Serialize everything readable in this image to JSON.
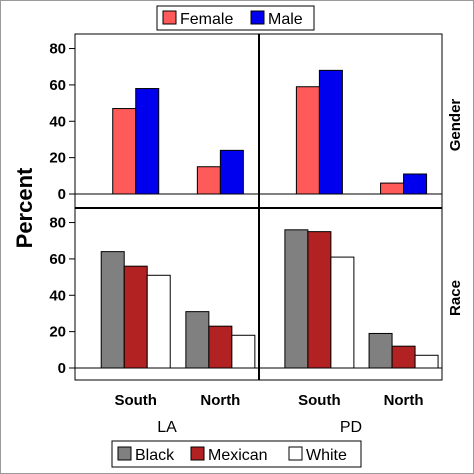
{
  "chart_data": {
    "type": "bar",
    "ylabel": "Percent",
    "ylim": [
      0,
      88
    ],
    "yticks": [
      0,
      20,
      40,
      60,
      80
    ],
    "columns": [
      "LA",
      "PD"
    ],
    "categories": [
      "South",
      "North"
    ],
    "grid": false,
    "panels": [
      {
        "row": "Gender",
        "legend": "top-center",
        "series_names": [
          "Female",
          "Male"
        ],
        "series_colors": [
          "#ff5a5a",
          "#0000ee"
        ],
        "data": {
          "LA": [
            [
              47,
              15
            ],
            [
              58,
              24
            ]
          ],
          "PD": [
            [
              59,
              6
            ],
            [
              68,
              11
            ]
          ]
        }
      },
      {
        "row": "Race",
        "legend": "bottom-center",
        "series_names": [
          "Black",
          "Mexican",
          "White"
        ],
        "series_colors": [
          "#808080",
          "#b22222",
          "#ffffff"
        ],
        "data": {
          "LA": [
            [
              64,
              31
            ],
            [
              56,
              23
            ],
            [
              51,
              18
            ]
          ],
          "PD": [
            [
              76,
              19
            ],
            [
              75,
              12
            ],
            [
              61,
              7
            ]
          ]
        }
      }
    ]
  }
}
